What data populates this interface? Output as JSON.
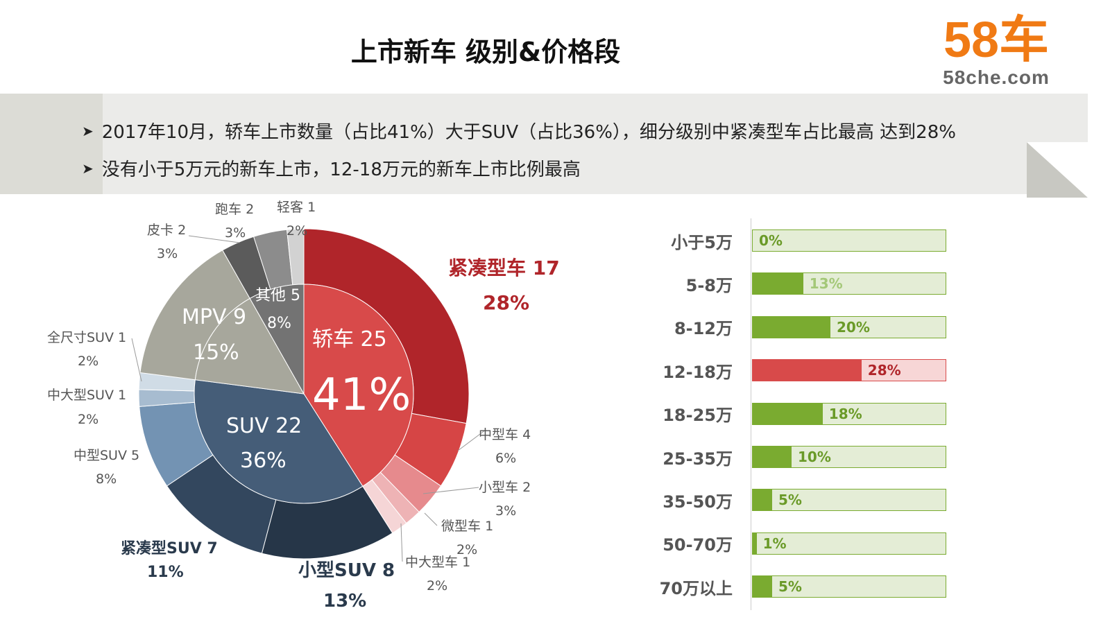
{
  "header": {
    "title": "上市新车 级别&价格段",
    "logo_main": "58车",
    "logo_sub": "58che.com"
  },
  "bullets": [
    "2017年10月，轿车上市数量（占比41%）大于SUV（占比36%），细分级别中紧凑型车占比最高 达到28%",
    "没有小于5万元的新车上市，12-18万元的新车上市比例最高"
  ],
  "chart_data": [
    {
      "type": "pie",
      "subtype": "sunburst",
      "inner": [
        {
          "name": "轿车",
          "value": 25,
          "pct": "41%",
          "color": "#d84a4a"
        },
        {
          "name": "SUV",
          "value": 22,
          "pct": "36%",
          "color": "#455d78"
        },
        {
          "name": "MPV",
          "value": 9,
          "pct": "15%",
          "color": "#a7a79c"
        },
        {
          "name": "其他",
          "value": 5,
          "pct": "8%",
          "color": "#737373"
        }
      ],
      "outer": [
        {
          "name": "紧凑型车",
          "value": 17,
          "pct": "28%",
          "color": "#b0252a"
        },
        {
          "name": "中型车",
          "value": 4,
          "pct": "6%",
          "color": "#d64545"
        },
        {
          "name": "小型车",
          "value": 2,
          "pct": "3%",
          "color": "#e68a8d"
        },
        {
          "name": "微型车",
          "value": 1,
          "pct": "2%",
          "color": "#eeb3b5"
        },
        {
          "name": "中大型车",
          "value": 1,
          "pct": "2%",
          "color": "#f5d5d6"
        },
        {
          "name": "小型SUV",
          "value": 8,
          "pct": "13%",
          "color": "#263648"
        },
        {
          "name": "紧凑型SUV",
          "value": 7,
          "pct": "11%",
          "color": "#33475e"
        },
        {
          "name": "中型SUV",
          "value": 5,
          "pct": "8%",
          "color": "#7393b3"
        },
        {
          "name": "中大型SUV",
          "value": 1,
          "pct": "2%",
          "color": "#a7bcd0"
        },
        {
          "name": "全尺寸SUV",
          "value": 1,
          "pct": "2%",
          "color": "#d0dce6"
        },
        {
          "name": "MPV",
          "value": 9,
          "pct": "15%",
          "color": "#a7a79c"
        },
        {
          "name": "皮卡",
          "value": 2,
          "pct": "3%",
          "color": "#5b5b5b"
        },
        {
          "name": "跑车",
          "value": 2,
          "pct": "3%",
          "color": "#8c8c8c"
        },
        {
          "name": "轻客",
          "value": 1,
          "pct": "2%",
          "color": "#d2d2d2"
        }
      ]
    },
    {
      "type": "bar",
      "orientation": "horizontal",
      "xlim": [
        0,
        50
      ],
      "categories": [
        "小于5万",
        "5-8万",
        "8-12万",
        "12-18万",
        "18-25万",
        "25-35万",
        "35-50万",
        "50-70万",
        "70万以上"
      ],
      "values": [
        0,
        13,
        20,
        28,
        18,
        10,
        5,
        1,
        5
      ],
      "labels": [
        "0%",
        "13%",
        "20%",
        "28%",
        "18%",
        "10%",
        "5%",
        "1%",
        "5%"
      ],
      "highlight": "12-18万",
      "colors": {
        "normal": "#7aab30",
        "highlight": "#d84a4a"
      }
    }
  ]
}
